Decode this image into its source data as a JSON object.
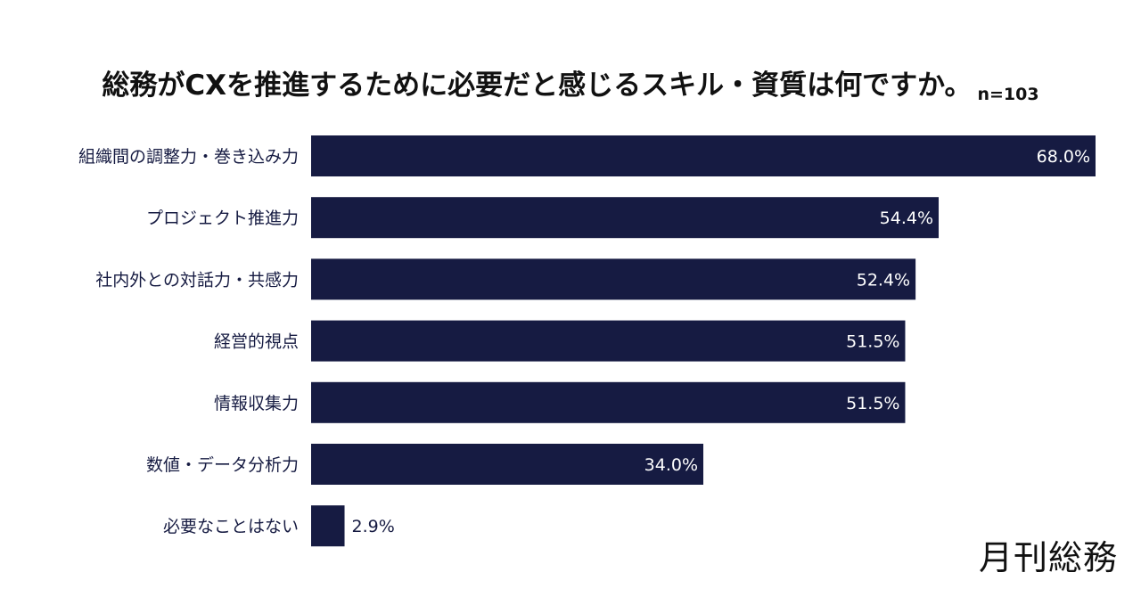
{
  "title": "総務がCXを推進するために必要だと感じるスキル・資質は何ですか。",
  "sample_size": "n=103",
  "brand": "月刊総務",
  "colors": {
    "bar": "#161b42",
    "label_inside": "#ffffff",
    "label_outside": "#161b42",
    "category_text": "#161b42"
  },
  "chart_data": {
    "type": "bar",
    "orientation": "horizontal",
    "categories": [
      "組織間の調整力・巻き込み力",
      "プロジェクト推進力",
      "社内外との対話力・共感力",
      "経営的視点",
      "情報収集力",
      "数値・データ分析力",
      "必要なことはない"
    ],
    "values": [
      68.0,
      54.4,
      52.4,
      51.5,
      51.5,
      34.0,
      2.9
    ],
    "value_labels": [
      "68.0%",
      "54.4%",
      "52.4%",
      "51.5%",
      "51.5%",
      "34.0%",
      "2.9%"
    ],
    "xlim": [
      0,
      68.0
    ],
    "grid": false,
    "legend": "none",
    "title": "総務がCXを推進するために必要だと感じるスキル・資質は何ですか。",
    "xlabel": "",
    "ylabel": ""
  }
}
